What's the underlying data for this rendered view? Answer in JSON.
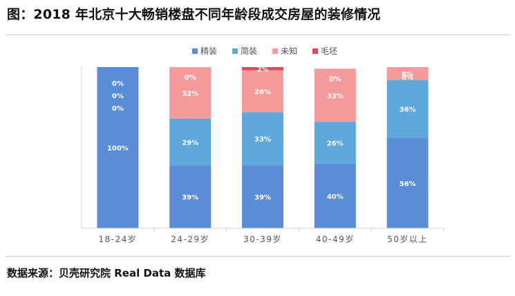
{
  "title": "图：2018 年北京十大畅销楼盘不同年龄段成交房屋的装修情况",
  "source": "数据来源：贝壳研究院 Real Data 数据库",
  "chart_data": {
    "type": "bar",
    "stacked": true,
    "percent_stacked": true,
    "legend_position": "top",
    "grid": false,
    "ylim": [
      0,
      100
    ],
    "categories": [
      "18-24岁",
      "24-29岁",
      "30-39岁",
      "40-49岁",
      "50岁以上"
    ],
    "series": [
      {
        "name": "精装",
        "color": "#5b8cd6",
        "values": [
          100,
          39,
          39,
          40,
          56
        ],
        "labels": [
          "100%",
          "39%",
          "39%",
          "40%",
          "56%"
        ]
      },
      {
        "name": "简装",
        "color": "#5ea8dc",
        "values": [
          0,
          29,
          33,
          26,
          36
        ],
        "labels": [
          "0%",
          "29%",
          "33%",
          "26%",
          "36%"
        ]
      },
      {
        "name": "未知",
        "color": "#f59b9b",
        "values": [
          0,
          32,
          26,
          33,
          8
        ],
        "labels": [
          "0%",
          "32%",
          "26%",
          "33%",
          "8%"
        ]
      },
      {
        "name": "毛坯",
        "color": "#e8455a",
        "values": [
          0,
          0,
          2,
          0,
          0
        ],
        "labels": [
          "0%",
          "0%",
          "2%",
          "0%",
          "0%"
        ]
      }
    ]
  }
}
